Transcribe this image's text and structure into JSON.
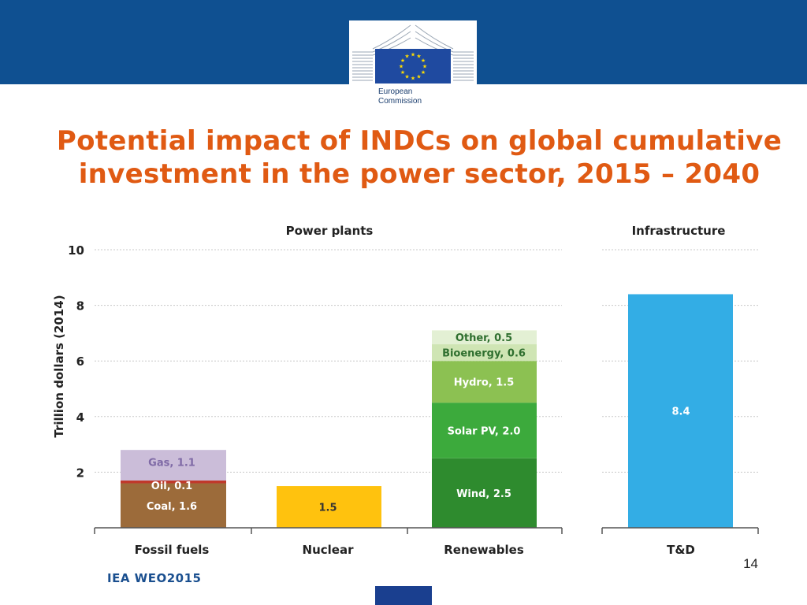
{
  "header": {
    "band_color": "#0f5091",
    "logo_text_line1": "European",
    "logo_text_line2": "Commission",
    "flag_color": "#1f4aa0",
    "star_color": "#ffdd00"
  },
  "slide": {
    "title_line1": "Potential impact of INDCs on global cumulative",
    "title_line2": "investment in the power sector, 2015 – 2040",
    "title_color": "#e05a13",
    "page_number": "14",
    "source": "IEA WEO2015"
  },
  "chart_data": {
    "type": "bar",
    "stacked": true,
    "ylabel": "Trillion dollars (2014)",
    "ylim": [
      0,
      10
    ],
    "yticks": [
      2,
      4,
      6,
      8,
      10
    ],
    "grid": true,
    "panels": [
      {
        "title": "Power plants",
        "categories": [
          "Fossil fuels",
          "Nuclear",
          "Renewables"
        ]
      },
      {
        "title": "Infrastructure",
        "categories": [
          "T&D"
        ]
      }
    ],
    "bars": [
      {
        "category": "Fossil fuels",
        "segments": [
          {
            "name": "Coal",
            "value": 1.6,
            "label": "Coal, 1.6",
            "color": "#9c6b3a",
            "label_color": "#ffffff"
          },
          {
            "name": "Oil",
            "value": 0.1,
            "label": "Oil, 0.1",
            "color": "#c0392b",
            "label_color": "#ffffff"
          },
          {
            "name": "Gas",
            "value": 1.1,
            "label": "Gas, 1.1",
            "color": "#cbbdd9",
            "label_color": "#7f6aa6"
          }
        ]
      },
      {
        "category": "Nuclear",
        "segments": [
          {
            "name": "Nuclear",
            "value": 1.5,
            "label": "1.5",
            "color": "#ffc20e",
            "label_color": "#333333"
          }
        ]
      },
      {
        "category": "Renewables",
        "segments": [
          {
            "name": "Wind",
            "value": 2.5,
            "label": "Wind, 2.5",
            "color": "#2e8b2e",
            "label_color": "#ffffff"
          },
          {
            "name": "Solar PV",
            "value": 2.0,
            "label": "Solar PV, 2.0",
            "color": "#3caa3c",
            "label_color": "#ffffff"
          },
          {
            "name": "Hydro",
            "value": 1.5,
            "label": "Hydro, 1.5",
            "color": "#8cc152",
            "label_color": "#ffffff"
          },
          {
            "name": "Bioenergy",
            "value": 0.6,
            "label": "Bioenergy, 0.6",
            "color": "#cfe5b4",
            "label_color": "#2f6f2f"
          },
          {
            "name": "Other",
            "value": 0.5,
            "label": "Other, 0.5",
            "color": "#e3f0d4",
            "label_color": "#2f6f2f"
          }
        ]
      },
      {
        "category": "T&D",
        "segments": [
          {
            "name": "T&D",
            "value": 8.4,
            "label": "8.4",
            "color": "#33ade5",
            "label_color": "#ffffff"
          }
        ]
      }
    ]
  }
}
